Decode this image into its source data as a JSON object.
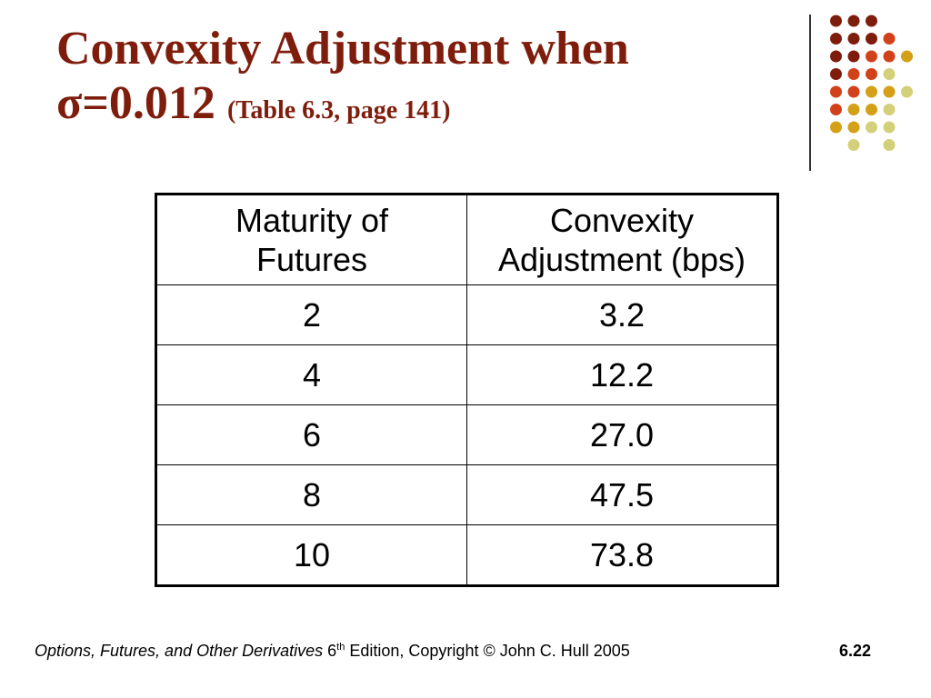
{
  "title": {
    "line1": "Convexity Adjustment when",
    "sigma_symbol": "σ",
    "sigma_value": "=0.012",
    "reference": "(Table 6.3, page 141)"
  },
  "table": {
    "headers": [
      "Maturity of Futures",
      "Convexity Adjustment (bps)"
    ],
    "header_lines": [
      [
        "Maturity of",
        "Futures"
      ],
      [
        "Convexity",
        "Adjustment (bps)"
      ]
    ],
    "rows": [
      [
        "2",
        "3.2"
      ],
      [
        "4",
        "12.2"
      ],
      [
        "6",
        "27.0"
      ],
      [
        "8",
        "47.5"
      ],
      [
        "10",
        "73.8"
      ]
    ]
  },
  "footer": {
    "book_title": "Options, Futures, and Other Derivatives",
    "edition_number": "6",
    "edition_suffix": "th",
    "rest": "Edition, Copyright © John C. Hull 2005",
    "page_number": "6.22"
  },
  "colors": {
    "title": "#7f1d0c",
    "dot_dark": "#7f1d0c",
    "dot_red": "#d2421a",
    "dot_gold": "#d4a017",
    "dot_light": "#d4d07a"
  }
}
